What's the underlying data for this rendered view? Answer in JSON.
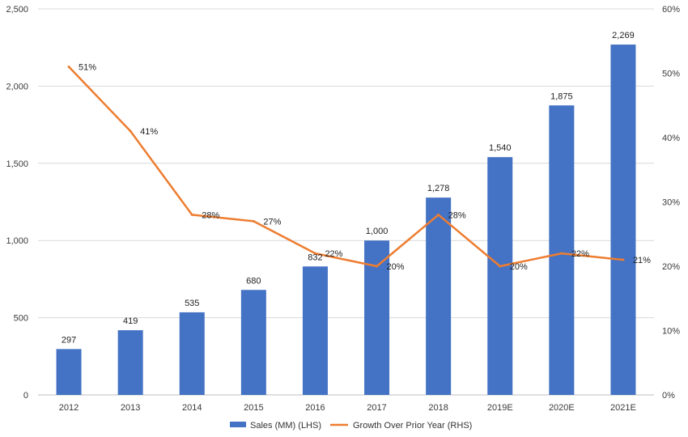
{
  "chart_data": {
    "type": "bar",
    "categories": [
      "2012",
      "2013",
      "2014",
      "2015",
      "2016",
      "2017",
      "2018",
      "2019E",
      "2020E",
      "2021E"
    ],
    "series": [
      {
        "name": "Sales (MM) (LHS)",
        "type": "bar",
        "axis": "left",
        "color": "#4472C4",
        "values": [
          297,
          419,
          535,
          680,
          832,
          1000,
          1278,
          1540,
          1875,
          2269
        ],
        "labels": [
          "297",
          "419",
          "535",
          "680",
          "832",
          "1,000",
          "1,278",
          "1,540",
          "1,875",
          "2,269"
        ]
      },
      {
        "name": "Growth Over Prior Year (RHS)",
        "type": "line",
        "axis": "right",
        "color": "#ED7D31",
        "values": [
          51,
          41,
          28,
          27,
          22,
          20,
          28,
          20,
          22,
          21
        ],
        "labels": [
          "51%",
          "41%",
          "28%",
          "27%",
          "22%",
          "20%",
          "28%",
          "20%",
          "22%",
          "21%"
        ]
      }
    ],
    "y_left": {
      "range": [
        0,
        2500
      ],
      "ticks": [
        0,
        500,
        1000,
        1500,
        2000,
        2500
      ],
      "tick_labels": [
        "0",
        "500",
        "1,000",
        "1,500",
        "2,000",
        "2,500"
      ]
    },
    "y_right": {
      "range": [
        0,
        60
      ],
      "ticks": [
        0,
        10,
        20,
        30,
        40,
        50,
        60
      ],
      "tick_labels": [
        "0%",
        "10%",
        "20%",
        "30%",
        "40%",
        "50%",
        "60%"
      ]
    },
    "grid": true,
    "legend_position": "bottom"
  }
}
